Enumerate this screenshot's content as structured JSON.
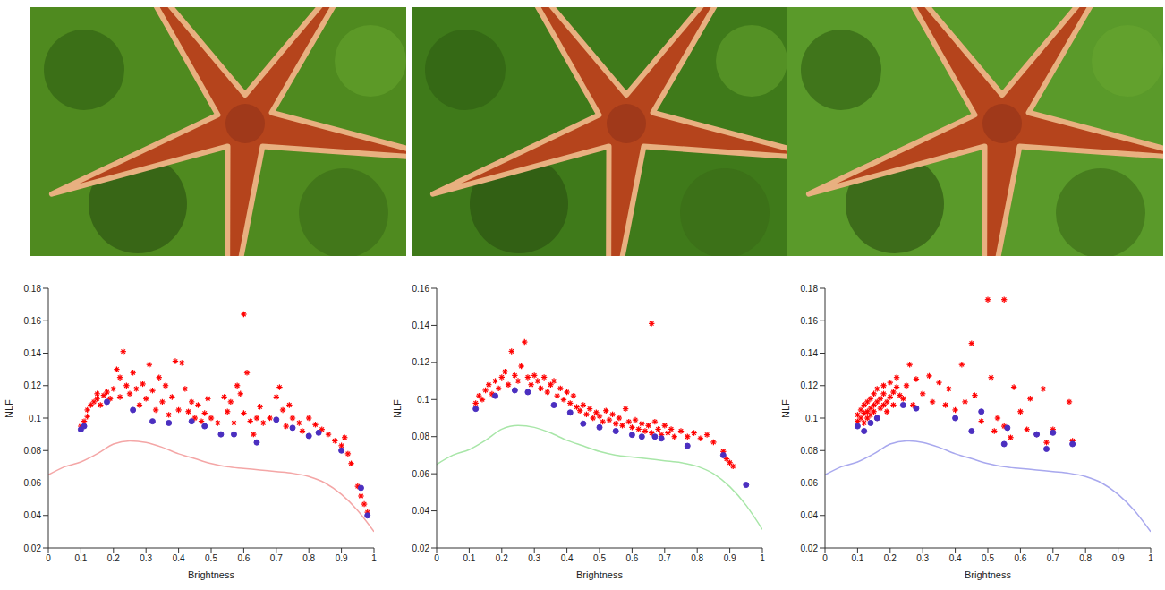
{
  "chart_data": [
    {
      "type": "scatter",
      "xlabel": "Brightness",
      "ylabel": "NLF",
      "xlim": [
        0,
        1
      ],
      "xticks": [
        0,
        0.1,
        0.2,
        0.3,
        0.4,
        0.5,
        0.6,
        0.7,
        0.8,
        0.9,
        1
      ],
      "ylim": [
        0.02,
        0.18
      ],
      "yticks": [
        0.02,
        0.04,
        0.06,
        0.08,
        0.1,
        0.12,
        0.14,
        0.16,
        0.18
      ],
      "grid": false,
      "series": [
        {
          "type": "line",
          "color": "#f4a6a6",
          "line_style": "solid",
          "x": [
            0,
            0.05,
            0.1,
            0.15,
            0.2,
            0.25,
            0.3,
            0.35,
            0.4,
            0.45,
            0.5,
            0.55,
            0.6,
            0.65,
            0.7,
            0.75,
            0.8,
            0.85,
            0.9,
            0.95,
            1
          ],
          "values": [
            0.065,
            0.07,
            0.073,
            0.078,
            0.084,
            0.086,
            0.085,
            0.082,
            0.078,
            0.075,
            0.072,
            0.07,
            0.069,
            0.068,
            0.067,
            0.066,
            0.064,
            0.06,
            0.053,
            0.043,
            0.03
          ]
        },
        {
          "type": "scatter",
          "color": "#ff0000",
          "marker": "star",
          "x": [
            0.1,
            0.11,
            0.12,
            0.12,
            0.13,
            0.14,
            0.15,
            0.15,
            0.16,
            0.17,
            0.18,
            0.19,
            0.2,
            0.21,
            0.22,
            0.22,
            0.23,
            0.24,
            0.25,
            0.26,
            0.27,
            0.28,
            0.29,
            0.3,
            0.31,
            0.32,
            0.33,
            0.34,
            0.35,
            0.36,
            0.37,
            0.38,
            0.39,
            0.4,
            0.41,
            0.42,
            0.43,
            0.44,
            0.45,
            0.46,
            0.47,
            0.48,
            0.49,
            0.5,
            0.52,
            0.54,
            0.55,
            0.56,
            0.57,
            0.58,
            0.59,
            0.6,
            0.6,
            0.61,
            0.62,
            0.63,
            0.64,
            0.65,
            0.66,
            0.68,
            0.7,
            0.71,
            0.72,
            0.73,
            0.74,
            0.75,
            0.77,
            0.78,
            0.8,
            0.82,
            0.84,
            0.86,
            0.88,
            0.9,
            0.91,
            0.92,
            0.93,
            0.95,
            0.96,
            0.97,
            0.98
          ],
          "values": [
            0.095,
            0.098,
            0.101,
            0.105,
            0.108,
            0.11,
            0.112,
            0.115,
            0.108,
            0.114,
            0.116,
            0.112,
            0.118,
            0.13,
            0.125,
            0.113,
            0.141,
            0.12,
            0.115,
            0.128,
            0.118,
            0.108,
            0.121,
            0.112,
            0.133,
            0.117,
            0.105,
            0.125,
            0.11,
            0.12,
            0.102,
            0.113,
            0.135,
            0.105,
            0.134,
            0.118,
            0.104,
            0.11,
            0.1,
            0.108,
            0.098,
            0.103,
            0.112,
            0.1,
            0.097,
            0.113,
            0.104,
            0.11,
            0.097,
            0.12,
            0.115,
            0.164,
            0.103,
            0.128,
            0.098,
            0.09,
            0.1,
            0.107,
            0.097,
            0.1,
            0.113,
            0.119,
            0.105,
            0.095,
            0.108,
            0.1,
            0.097,
            0.092,
            0.1,
            0.096,
            0.093,
            0.09,
            0.086,
            0.083,
            0.088,
            0.078,
            0.072,
            0.058,
            0.052,
            0.047,
            0.042
          ]
        },
        {
          "type": "scatter",
          "color": "#4b2fc0",
          "marker": "circle",
          "x": [
            0.1,
            0.11,
            0.18,
            0.26,
            0.32,
            0.37,
            0.44,
            0.48,
            0.53,
            0.57,
            0.64,
            0.7,
            0.75,
            0.8,
            0.83,
            0.9,
            0.96,
            0.98
          ],
          "values": [
            0.093,
            0.095,
            0.11,
            0.105,
            0.098,
            0.097,
            0.098,
            0.095,
            0.09,
            0.09,
            0.085,
            0.099,
            0.094,
            0.089,
            0.091,
            0.08,
            0.057,
            0.04
          ]
        }
      ]
    },
    {
      "type": "scatter",
      "xlabel": "Brightness",
      "ylabel": "NLF",
      "xlim": [
        0,
        1
      ],
      "xticks": [
        0,
        0.1,
        0.2,
        0.3,
        0.4,
        0.5,
        0.6,
        0.7,
        0.8,
        0.9,
        1
      ],
      "ylim": [
        0.02,
        0.16
      ],
      "yticks": [
        0.02,
        0.04,
        0.06,
        0.08,
        0.1,
        0.12,
        0.14,
        0.16
      ],
      "grid": false,
      "series": [
        {
          "type": "line",
          "color": "#a8e6a8",
          "line_style": "solid",
          "x": [
            0,
            0.05,
            0.1,
            0.15,
            0.2,
            0.25,
            0.3,
            0.35,
            0.4,
            0.45,
            0.5,
            0.55,
            0.6,
            0.65,
            0.7,
            0.75,
            0.8,
            0.85,
            0.9,
            0.95,
            1
          ],
          "values": [
            0.065,
            0.07,
            0.073,
            0.078,
            0.084,
            0.086,
            0.085,
            0.082,
            0.078,
            0.075,
            0.072,
            0.07,
            0.069,
            0.068,
            0.067,
            0.066,
            0.064,
            0.06,
            0.053,
            0.043,
            0.03
          ]
        },
        {
          "type": "scatter",
          "color": "#ff0000",
          "marker": "star",
          "x": [
            0.12,
            0.13,
            0.14,
            0.15,
            0.16,
            0.17,
            0.18,
            0.19,
            0.2,
            0.21,
            0.22,
            0.23,
            0.24,
            0.25,
            0.26,
            0.27,
            0.28,
            0.29,
            0.3,
            0.31,
            0.32,
            0.33,
            0.34,
            0.35,
            0.36,
            0.37,
            0.38,
            0.39,
            0.4,
            0.41,
            0.42,
            0.43,
            0.44,
            0.45,
            0.46,
            0.47,
            0.48,
            0.49,
            0.5,
            0.51,
            0.52,
            0.53,
            0.54,
            0.55,
            0.56,
            0.57,
            0.58,
            0.59,
            0.6,
            0.61,
            0.62,
            0.63,
            0.64,
            0.65,
            0.66,
            0.66,
            0.67,
            0.68,
            0.69,
            0.7,
            0.71,
            0.72,
            0.73,
            0.75,
            0.77,
            0.79,
            0.81,
            0.83,
            0.85,
            0.88,
            0.89,
            0.9,
            0.91
          ],
          "values": [
            0.098,
            0.102,
            0.1,
            0.105,
            0.108,
            0.103,
            0.11,
            0.106,
            0.112,
            0.115,
            0.108,
            0.126,
            0.113,
            0.11,
            0.118,
            0.131,
            0.112,
            0.108,
            0.113,
            0.11,
            0.106,
            0.112,
            0.104,
            0.108,
            0.11,
            0.102,
            0.106,
            0.1,
            0.104,
            0.098,
            0.102,
            0.096,
            0.094,
            0.097,
            0.092,
            0.095,
            0.09,
            0.093,
            0.091,
            0.088,
            0.094,
            0.089,
            0.092,
            0.087,
            0.09,
            0.086,
            0.095,
            0.088,
            0.085,
            0.089,
            0.084,
            0.087,
            0.083,
            0.086,
            0.141,
            0.082,
            0.088,
            0.084,
            0.081,
            0.086,
            0.082,
            0.084,
            0.08,
            0.083,
            0.08,
            0.082,
            0.079,
            0.081,
            0.077,
            0.072,
            0.068,
            0.066,
            0.064
          ]
        },
        {
          "type": "scatter",
          "color": "#4b2fc0",
          "marker": "circle",
          "x": [
            0.12,
            0.18,
            0.24,
            0.28,
            0.36,
            0.41,
            0.45,
            0.5,
            0.55,
            0.6,
            0.63,
            0.67,
            0.69,
            0.77,
            0.88,
            0.95
          ],
          "values": [
            0.095,
            0.102,
            0.105,
            0.104,
            0.097,
            0.093,
            0.087,
            0.085,
            0.083,
            0.081,
            0.08,
            0.08,
            0.079,
            0.075,
            0.07,
            0.054
          ]
        }
      ]
    },
    {
      "type": "scatter",
      "xlabel": "Brightness",
      "ylabel": "NLF",
      "xlim": [
        0,
        1
      ],
      "xticks": [
        0,
        0.1,
        0.2,
        0.3,
        0.4,
        0.5,
        0.6,
        0.7,
        0.8,
        0.9,
        1
      ],
      "ylim": [
        0.02,
        0.18
      ],
      "yticks": [
        0.02,
        0.04,
        0.06,
        0.08,
        0.1,
        0.12,
        0.14,
        0.16,
        0.18
      ],
      "grid": false,
      "series": [
        {
          "type": "line",
          "color": "#a8a8ee",
          "line_style": "solid",
          "x": [
            0,
            0.05,
            0.1,
            0.15,
            0.2,
            0.25,
            0.3,
            0.35,
            0.4,
            0.45,
            0.5,
            0.55,
            0.6,
            0.65,
            0.7,
            0.75,
            0.8,
            0.85,
            0.9,
            0.95,
            1
          ],
          "values": [
            0.065,
            0.07,
            0.073,
            0.078,
            0.084,
            0.086,
            0.085,
            0.082,
            0.078,
            0.075,
            0.072,
            0.07,
            0.069,
            0.068,
            0.067,
            0.066,
            0.064,
            0.06,
            0.053,
            0.043,
            0.03
          ]
        },
        {
          "type": "scatter",
          "color": "#ff0000",
          "marker": "star",
          "x": [
            0.1,
            0.1,
            0.11,
            0.11,
            0.12,
            0.12,
            0.12,
            0.13,
            0.13,
            0.13,
            0.14,
            0.14,
            0.14,
            0.15,
            0.15,
            0.15,
            0.16,
            0.16,
            0.16,
            0.17,
            0.17,
            0.18,
            0.18,
            0.18,
            0.19,
            0.19,
            0.2,
            0.2,
            0.21,
            0.21,
            0.22,
            0.22,
            0.23,
            0.24,
            0.25,
            0.26,
            0.27,
            0.28,
            0.3,
            0.32,
            0.33,
            0.35,
            0.37,
            0.38,
            0.4,
            0.42,
            0.43,
            0.45,
            0.46,
            0.48,
            0.5,
            0.51,
            0.52,
            0.53,
            0.55,
            0.55,
            0.57,
            0.58,
            0.6,
            0.62,
            0.63,
            0.65,
            0.67,
            0.68,
            0.7,
            0.75,
            0.76
          ],
          "values": [
            0.098,
            0.102,
            0.1,
            0.105,
            0.103,
            0.108,
            0.097,
            0.104,
            0.11,
            0.1,
            0.106,
            0.112,
            0.102,
            0.108,
            0.115,
            0.104,
            0.11,
            0.1,
            0.118,
            0.106,
            0.112,
            0.108,
            0.115,
            0.12,
            0.11,
            0.104,
            0.113,
            0.122,
            0.116,
            0.108,
            0.119,
            0.125,
            0.114,
            0.112,
            0.12,
            0.133,
            0.108,
            0.124,
            0.115,
            0.126,
            0.11,
            0.122,
            0.108,
            0.118,
            0.105,
            0.133,
            0.11,
            0.146,
            0.114,
            0.098,
            0.173,
            0.125,
            0.092,
            0.1,
            0.173,
            0.095,
            0.088,
            0.119,
            0.104,
            0.093,
            0.112,
            0.09,
            0.118,
            0.085,
            0.093,
            0.11,
            0.086
          ]
        },
        {
          "type": "scatter",
          "color": "#4b2fc0",
          "marker": "circle",
          "x": [
            0.1,
            0.12,
            0.14,
            0.16,
            0.24,
            0.28,
            0.4,
            0.45,
            0.48,
            0.55,
            0.56,
            0.65,
            0.68,
            0.7,
            0.76
          ],
          "values": [
            0.095,
            0.092,
            0.097,
            0.1,
            0.108,
            0.106,
            0.1,
            0.092,
            0.104,
            0.084,
            0.094,
            0.09,
            0.081,
            0.091,
            0.084
          ]
        }
      ]
    }
  ]
}
